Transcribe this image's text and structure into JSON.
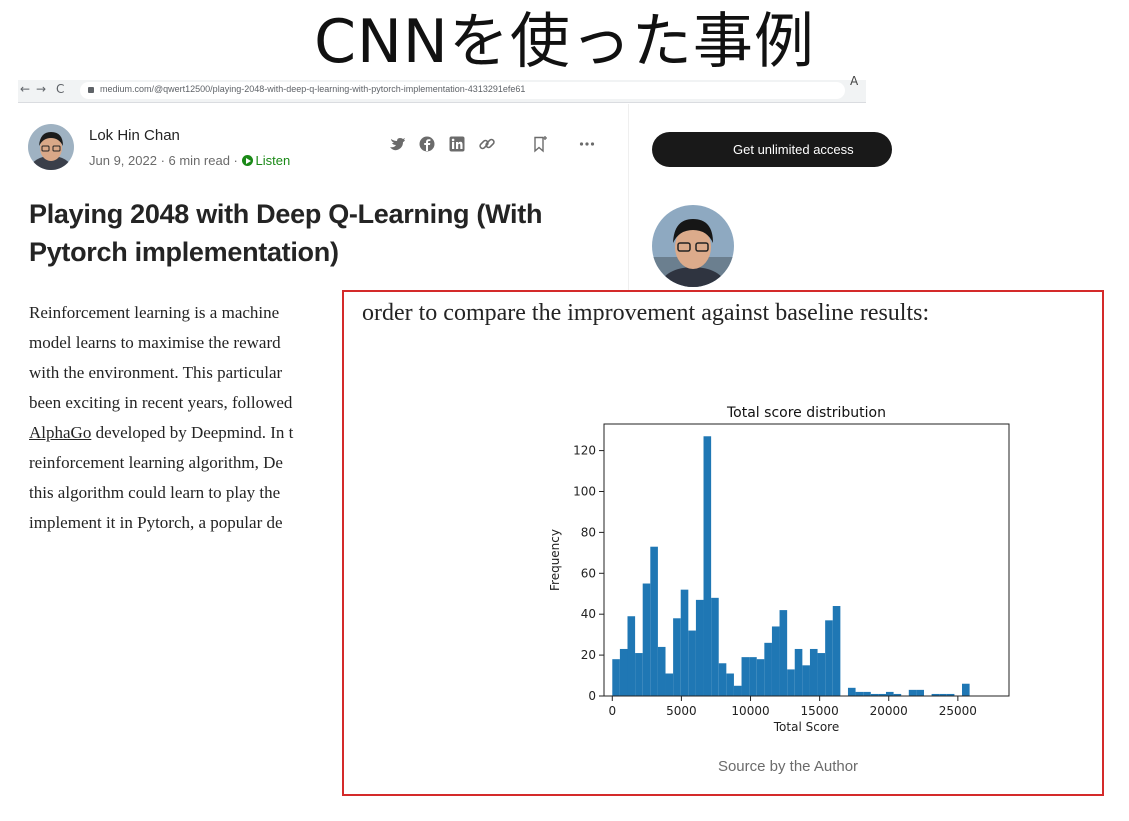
{
  "slide": {
    "title": "CNNを使った事例"
  },
  "browser": {
    "url": "medium.com/@qwert12500/playing-2048-with-deep-q-learning-with-pytorch-implementation-4313291efe61",
    "back": "←",
    "forward": "→",
    "reload": "C",
    "tab_glyph": "A"
  },
  "article": {
    "author": "Lok Hin Chan",
    "date": "Jun 9, 2022",
    "sep1": " · ",
    "read_time": "6 min read",
    "sep2": " · ",
    "listen": "Listen",
    "title": "Playing 2048 with Deep Q-Learning (With Pytorch implementation)",
    "body_lines": [
      {
        "before": "Reinforcement learning is a machine",
        "link": "",
        "after": ""
      },
      {
        "before": "model learns to maximise the reward",
        "link": "",
        "after": ""
      },
      {
        "before": "with the environment. This particular",
        "link": "",
        "after": ""
      },
      {
        "before": "been exciting in recent years, followed",
        "link": "",
        "after": ""
      },
      {
        "before": "",
        "link": "AlphaGo",
        "after": " developed by Deepmind. In t"
      },
      {
        "before": "reinforcement learning algorithm, De",
        "link": "",
        "after": ""
      },
      {
        "before": "this algorithm could learn to play the",
        "link": "",
        "after": ""
      },
      {
        "before": "implement it in Pytorch, a popular de",
        "link": "",
        "after": ""
      }
    ]
  },
  "sidebar": {
    "cta": "Get unlimited access"
  },
  "highlight": {
    "lead": "order to compare the improvement against baseline results:",
    "caption": "Source by the Author"
  },
  "colors": {
    "bar": "#1f77b4",
    "highlight_border": "#d42a2a",
    "listen": "#1a8917",
    "cta_bg": "#191919"
  },
  "icons": [
    "twitter-icon",
    "facebook-icon",
    "linkedin-icon",
    "link-icon",
    "bookmark-icon",
    "more-icon",
    "play-icon",
    "lock-icon"
  ],
  "chart_data": {
    "type": "bar",
    "title": "Total score distribution",
    "xlabel": "Total Score",
    "ylabel": "Frequency",
    "xlim": [
      -600,
      28700
    ],
    "ylim": [
      0,
      133
    ],
    "xticks": [
      0,
      5000,
      10000,
      15000,
      20000,
      25000
    ],
    "yticks": [
      0,
      20,
      40,
      60,
      80,
      100,
      120
    ],
    "bin_width": 550,
    "bin_start": 0,
    "values": [
      18,
      23,
      39,
      21,
      55,
      73,
      24,
      11,
      38,
      52,
      32,
      47,
      127,
      48,
      16,
      11,
      5,
      19,
      19,
      18,
      26,
      34,
      42,
      13,
      23,
      15,
      23,
      21,
      37,
      44,
      0,
      4,
      2,
      2,
      1,
      1,
      2,
      1,
      0,
      3,
      3,
      0,
      1,
      1,
      1,
      0,
      6
    ]
  }
}
